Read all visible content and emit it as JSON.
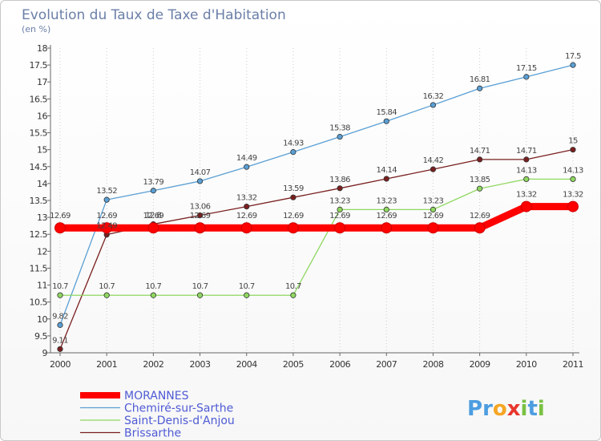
{
  "chart_data": {
    "type": "line",
    "title": "Evolution du Taux de Taxe d'Habitation",
    "subtitle": "(en %)",
    "xlabel": "",
    "ylabel": "",
    "ylim": [
      9,
      18
    ],
    "y_ticks": [
      "9",
      "9.5",
      "10",
      "10.5",
      "11",
      "11.5",
      "12",
      "12.5",
      "13",
      "13.5",
      "14",
      "14.5",
      "15",
      "15.5",
      "16",
      "16.5",
      "17",
      "17.5",
      "18"
    ],
    "x": [
      "2000",
      "2001",
      "2002",
      "2003",
      "2004",
      "2005",
      "2006",
      "2007",
      "2008",
      "2009",
      "2010",
      "2011"
    ],
    "grid": "vertical-dotted",
    "legend_position": "bottom-left",
    "series": [
      {
        "name": "MORANNES",
        "color": "#ff0000",
        "values": [
          12.69,
          12.69,
          12.69,
          12.69,
          12.69,
          12.69,
          12.69,
          12.69,
          12.69,
          12.69,
          13.32,
          13.32
        ],
        "labels": [
          "12.69",
          "12.69",
          "12.69",
          "12.69",
          "12.69",
          "12.69",
          "12.69",
          "12.69",
          "12.69",
          "12.69",
          "13.32",
          "13.32"
        ]
      },
      {
        "name": "Chemiré-sur-Sarthe",
        "color": "#5a9fd4",
        "values": [
          9.82,
          13.52,
          13.79,
          14.07,
          14.49,
          14.93,
          15.38,
          15.84,
          16.32,
          16.81,
          17.15,
          17.5
        ],
        "labels": [
          "9.82",
          "13.52",
          "13.79",
          "14.07",
          "14.49",
          "14.93",
          "15.38",
          "15.84",
          "16.32",
          "16.81",
          "17.15",
          "17.5"
        ]
      },
      {
        "name": "Saint-Denis-d'Anjou",
        "color": "#8fd860",
        "values": [
          10.7,
          10.7,
          10.7,
          10.7,
          10.7,
          10.7,
          13.23,
          13.23,
          13.23,
          13.85,
          14.13,
          14.13
        ],
        "labels": [
          "10.7",
          "10.7",
          "10.7",
          "10.7",
          "10.7",
          "10.7",
          "13.23",
          "13.23",
          "13.23",
          "13.85",
          "14.13",
          "14.13"
        ]
      },
      {
        "name": "Brissarthe",
        "color": "#7a1f1f",
        "values": [
          9.11,
          12.49,
          12.8,
          13.06,
          13.32,
          13.59,
          13.86,
          14.14,
          14.42,
          14.71,
          14.71,
          15.0
        ],
        "labels": [
          "9.11",
          "12.49",
          "12.8",
          "13.06",
          "13.32",
          "13.59",
          "13.86",
          "14.14",
          "14.42",
          "14.71",
          "14.71",
          "15"
        ]
      }
    ]
  },
  "logo": {
    "text": "Proxiti",
    "letters": [
      "P",
      "r",
      "o",
      "x",
      "i",
      "t",
      "i"
    ],
    "colors": [
      "#4d9de0",
      "#4d9de0",
      "#f5a623",
      "#e8372e",
      "#7ac143",
      "#4d9de0",
      "#7ac143"
    ]
  }
}
